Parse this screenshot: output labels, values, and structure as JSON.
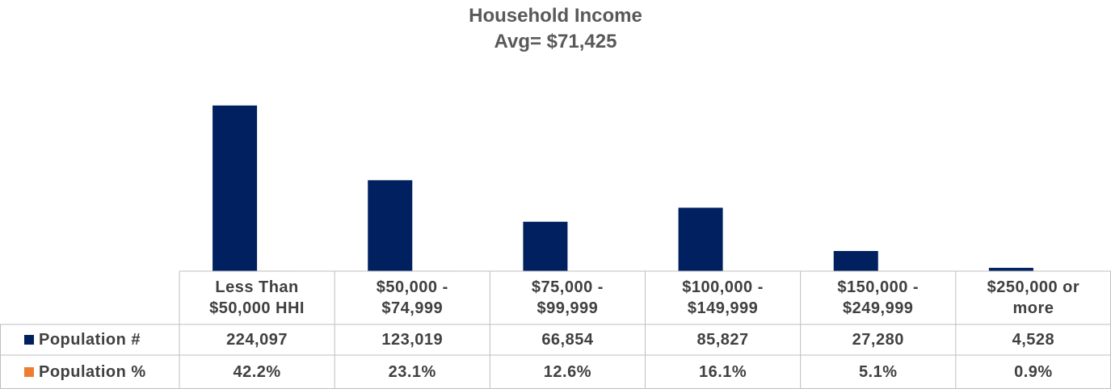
{
  "chart_data": {
    "type": "bar",
    "title": "Household Income",
    "subtitle": "Avg= $71,425",
    "categories": [
      "Less Than\n$50,000 HHI",
      "$50,000 -\n$74,999",
      "$75,000 -\n$99,999",
      "$100,000 -\n$149,999",
      "$150,000 -\n$249,999",
      "$250,000 or\nmore"
    ],
    "series": [
      {
        "name": "Population #",
        "color": "#002060",
        "values": [
          224097,
          123019,
          66854,
          85827,
          27280,
          4528
        ],
        "value_labels": [
          "224,097",
          "123,019",
          "66,854",
          "85,827",
          "27,280",
          "4,528"
        ]
      },
      {
        "name": "Population %",
        "color": "#ed7d31",
        "values": [
          42.2,
          23.1,
          12.6,
          16.1,
          5.1,
          0.9
        ],
        "value_labels": [
          "42.2%",
          "23.1%",
          "12.6%",
          "16.1%",
          "5.1%",
          "0.9%"
        ]
      }
    ],
    "ylim": [
      0,
      250000
    ]
  }
}
